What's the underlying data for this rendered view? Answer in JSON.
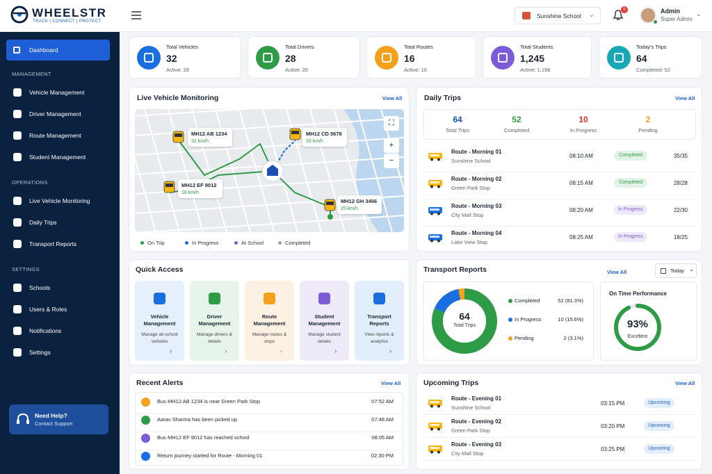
{
  "brand": {
    "name": "WHEELSTR",
    "tagline": "TRACK | CONNECT | PROTECT"
  },
  "topbar": {
    "school": "Sunshine School",
    "notifications": 5,
    "user_name": "Admin",
    "user_role": "Super Admin"
  },
  "sidebar": {
    "dashboard": "Dashboard",
    "sections": [
      {
        "heading": "MANAGEMENT",
        "items": [
          "Vehicle Management",
          "Driver Management",
          "Route Management",
          "Student Management"
        ]
      },
      {
        "heading": "OPERATIONS",
        "items": [
          "Live Vehicle Monitoring",
          "Daily Trips",
          "Transport Reports"
        ]
      },
      {
        "heading": "SETTINGS",
        "items": [
          "Schools",
          "Users & Roles",
          "Notifications",
          "Settings"
        ]
      }
    ],
    "help": {
      "title": "Need Help?",
      "subtitle": "Contact Support"
    }
  },
  "stats": [
    {
      "label": "Total Vehicles",
      "value": 32,
      "sub": "Active: 28",
      "color": "#1a6fe0"
    },
    {
      "label": "Total Drivers",
      "value": 28,
      "sub": "Active: 26",
      "color": "#2e9b46"
    },
    {
      "label": "Total Routes",
      "value": 16,
      "sub": "Active: 16",
      "color": "#f5a01a"
    },
    {
      "label": "Total Students",
      "value": "1,245",
      "sub": "Active: 1,198",
      "color": "#7c5cd6"
    },
    {
      "label": "Today's Trips",
      "value": 64,
      "sub": "Completed: 52",
      "color": "#17a7b5"
    }
  ],
  "live_monitoring": {
    "title": "Live Vehicle Monitoring",
    "view_all": "View All",
    "vehicles": [
      {
        "plate": "MH12 AB 1234",
        "speed": "32 km/h"
      },
      {
        "plate": "MH12 CD 5678",
        "speed": "20 km/h"
      },
      {
        "plate": "MH12 EF 9012",
        "speed": "18 km/h"
      },
      {
        "plate": "MH12 GH 3456",
        "speed": "25 km/h"
      }
    ],
    "legend": [
      {
        "name": "On Trip",
        "color": "#2e9b46"
      },
      {
        "name": "In Progress",
        "color": "#1a6fe0"
      },
      {
        "name": "At School",
        "color": "#7c5cd6"
      },
      {
        "name": "Completed",
        "color": "#9aa3ad"
      }
    ]
  },
  "daily_trips": {
    "title": "Daily Trips",
    "view_all": "View All",
    "summary": [
      {
        "value": 64,
        "label": "Total Trips",
        "color": "#1a4fb0"
      },
      {
        "value": 52,
        "label": "Completed",
        "color": "#2e9b46"
      },
      {
        "value": 10,
        "label": "In Progress",
        "color": "#d62d2d"
      },
      {
        "value": 2,
        "label": "Pending",
        "color": "#f5a01a"
      }
    ],
    "trips": [
      {
        "route": "Route - Morning 01",
        "stop": "Sunshine School",
        "time": "08:10 AM",
        "status": "Completed",
        "count": "35/35",
        "color": "#2e9b46"
      },
      {
        "route": "Route - Morning 02",
        "stop": "Green Park Stop",
        "time": "08:15 AM",
        "status": "Completed",
        "count": "28/28",
        "color": "#2e9b46"
      },
      {
        "route": "Route - Morning 03",
        "stop": "City Mall Stop",
        "time": "08:20 AM",
        "status": "In Progress",
        "count": "22/30",
        "color": "#7c5cd6"
      },
      {
        "route": "Route - Morning 04",
        "stop": "Lake View Stop",
        "time": "08:25 AM",
        "status": "In Progress",
        "count": "18/25",
        "color": "#7c5cd6"
      }
    ]
  },
  "quick_access": {
    "title": "Quick Access",
    "tiles": [
      {
        "title": "Vehicle Management",
        "desc": "Manage all school vehicles",
        "color": "#1a6fe0"
      },
      {
        "title": "Driver Management",
        "desc": "Manage drivers & details",
        "color": "#2e9b46"
      },
      {
        "title": "Route Management",
        "desc": "Manage routes & stops",
        "color": "#f5a01a"
      },
      {
        "title": "Student Management",
        "desc": "Manage student details",
        "color": "#7c5cd6"
      },
      {
        "title": "Transport Reports",
        "desc": "View reports & analytics",
        "color": "#1a6fe0"
      }
    ]
  },
  "transport_reports": {
    "title": "Transport Reports",
    "view_all": "View All",
    "period": "Today",
    "total": 64,
    "total_label": "Total Trips",
    "segments": [
      {
        "name": "Completed",
        "value": 52,
        "label": "52 (81.3%)",
        "color": "#2e9b46"
      },
      {
        "name": "In Progress",
        "value": 10,
        "label": "10 (15.6%)",
        "color": "#1a6fe0"
      },
      {
        "name": "Pending",
        "value": 2,
        "label": "2 (3.1%)",
        "color": "#f5a01a"
      }
    ],
    "on_time": {
      "title": "On Time Performance",
      "value": 93,
      "label": "93%",
      "caption": "Excellent",
      "color": "#2e9b46"
    }
  },
  "alerts": {
    "title": "Recent Alerts",
    "view_all": "View All",
    "items": [
      {
        "text": "Bus MH12 AB 1234 is near Green Park Stop",
        "time": "07:52 AM",
        "color": "#f5a01a"
      },
      {
        "text": "Aarav Sharma has been picked up",
        "time": "07:48 AM",
        "color": "#2e9b46"
      },
      {
        "text": "Bus MH12 EF 9012 has reached school",
        "time": "08:05 AM",
        "color": "#7c5cd6"
      },
      {
        "text": "Return journey started for Route - Morning 01",
        "time": "02:30 PM",
        "color": "#1a6fe0"
      }
    ]
  },
  "upcoming_trips": {
    "title": "Upcoming Trips",
    "view_all": "View All",
    "trips": [
      {
        "route": "Route - Evening 01",
        "stop": "Sunshine School",
        "time": "03:15 PM",
        "status": "Upcoming"
      },
      {
        "route": "Route - Evening 02",
        "stop": "Green Park Stop",
        "time": "03:20 PM",
        "status": "Upcoming"
      },
      {
        "route": "Route - Evening 03",
        "stop": "City Mall Stop",
        "time": "03:25 PM",
        "status": "Upcoming"
      }
    ]
  }
}
